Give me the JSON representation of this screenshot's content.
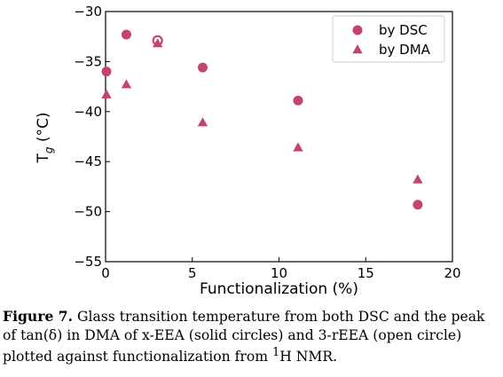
{
  "chart_data": {
    "type": "scatter",
    "xlabel": "Functionalization (%)",
    "ylabel_main": "T",
    "ylabel_sub": "g",
    "ylabel_rest": " (°C)",
    "xlim": [
      0,
      20
    ],
    "ylim": [
      -55,
      -30
    ],
    "xticks": [
      0,
      5,
      10,
      15,
      20
    ],
    "yticks": [
      -30,
      -35,
      -40,
      -45,
      -50,
      -55
    ],
    "grid": false,
    "legend_position": "top-right",
    "marker_color": "#c44569",
    "series": [
      {
        "name": "by DSC",
        "marker": "circle",
        "points": [
          {
            "x": 0.05,
            "y": -36.0,
            "filled": true
          },
          {
            "x": 1.2,
            "y": -32.3,
            "filled": true
          },
          {
            "x": 3.0,
            "y": -32.9,
            "filled": false
          },
          {
            "x": 5.6,
            "y": -35.6,
            "filled": true
          },
          {
            "x": 11.1,
            "y": -38.9,
            "filled": true
          },
          {
            "x": 18.0,
            "y": -49.3,
            "filled": true
          }
        ]
      },
      {
        "name": "by DMA",
        "marker": "triangle",
        "points": [
          {
            "x": 0.05,
            "y": -38.3,
            "filled": true
          },
          {
            "x": 1.2,
            "y": -37.3,
            "filled": true
          },
          {
            "x": 3.0,
            "y": -33.2,
            "filled": true
          },
          {
            "x": 5.6,
            "y": -41.1,
            "filled": true
          },
          {
            "x": 11.1,
            "y": -43.6,
            "filled": true
          },
          {
            "x": 18.0,
            "y": -46.8,
            "filled": true
          }
        ]
      }
    ]
  },
  "caption": {
    "label": "Figure 7.",
    "line1": " Glass transition temperature from both DSC and the peak",
    "line2": "of tan(δ) in DMA of x-EEA (solid circles) and 3-rEEA (open circle)",
    "line3_pre": "plotted against functionalization from ",
    "line3_sup": "1",
    "line3_post": "H NMR."
  }
}
